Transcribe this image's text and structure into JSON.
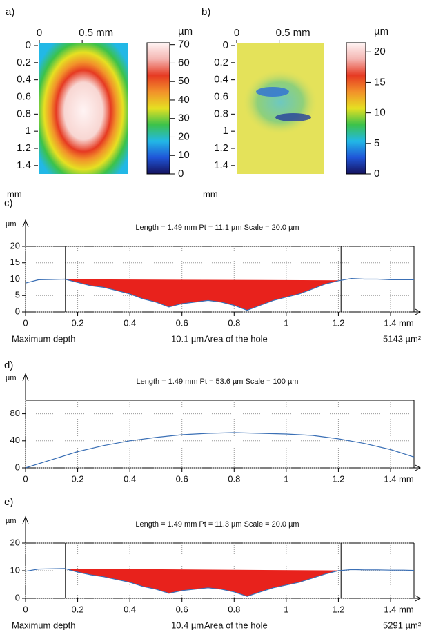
{
  "chart_data": [
    {
      "type": "heatmap",
      "label": "a)",
      "y_unit": "mm",
      "xlim": [
        0,
        1.03
      ],
      "xticks": [
        0,
        {
          "value": 0.5,
          "label": "0.5 mm"
        }
      ],
      "ylim": [
        0,
        1.49
      ],
      "yticks": [
        0,
        0.2,
        0.4,
        0.6,
        0.8,
        1,
        1.2,
        1.4
      ],
      "colorbar": {
        "unit": "µm",
        "lim": [
          0,
          71
        ],
        "ticks": [
          0,
          10,
          20,
          30,
          40,
          50,
          60,
          70
        ]
      },
      "colormap": [
        "#15125e",
        "#1f55d8",
        "#22b8e6",
        "#3cc24a",
        "#e6e022",
        "#f2922a",
        "#e63a22",
        "#f4b4b0",
        "#fff4f4"
      ]
    },
    {
      "type": "heatmap",
      "label": "b)",
      "y_unit": "mm",
      "xlim": [
        0,
        1.03
      ],
      "xticks": [
        0,
        {
          "value": 0.5,
          "label": "0.5 mm"
        }
      ],
      "ylim": [
        0,
        1.49
      ],
      "yticks": [
        0,
        0.2,
        0.4,
        0.6,
        0.8,
        1,
        1.2,
        1.4
      ],
      "colorbar": {
        "unit": "µm",
        "lim": [
          0,
          21.5
        ],
        "ticks": [
          0,
          5,
          10,
          15,
          20
        ]
      },
      "colormap": [
        "#15125e",
        "#1f55d8",
        "#22b8e6",
        "#3cc24a",
        "#e6e022",
        "#f2922a",
        "#e63a22",
        "#f4b4b0",
        "#fff4f4"
      ]
    },
    {
      "type": "line",
      "label": "c)",
      "y_unit": "µm",
      "annotation": "Length = 1.49 mm  Pt = 11.1 µm  Scale = 20.0 µm",
      "x": [
        0,
        0.05,
        0.1,
        0.15,
        0.2,
        0.25,
        0.3,
        0.35,
        0.4,
        0.45,
        0.5,
        0.55,
        0.6,
        0.65,
        0.7,
        0.75,
        0.8,
        0.85,
        0.9,
        0.95,
        1,
        1.05,
        1.1,
        1.15,
        1.2,
        1.25,
        1.3,
        1.35,
        1.4,
        1.45,
        1.49
      ],
      "values": [
        8.8,
        9.8,
        9.9,
        10,
        9,
        8,
        7.5,
        6.5,
        5.5,
        4,
        3,
        1.5,
        2.5,
        3,
        3.5,
        3,
        2,
        0.5,
        2,
        3.5,
        4.5,
        5.5,
        7,
        8.5,
        9.5,
        10.2,
        10,
        10,
        9.8,
        9.8,
        9.8
      ],
      "color": "#3a6fb5",
      "fill_color": "#e8221c",
      "cursors": [
        0.153,
        1.21
      ],
      "xlim": [
        0,
        1.49
      ],
      "xticks": [
        0,
        0.2,
        0.4,
        0.6,
        0.8,
        1,
        1.2,
        {
          "value": 1.4,
          "label": "1.4 mm"
        }
      ],
      "ylim": [
        0,
        20
      ],
      "yticks": [
        0,
        5,
        10,
        15,
        20
      ],
      "grid": true,
      "stats": [
        "Maximum depth",
        "10.1 µm",
        "Area of the hole",
        "5143 µm²"
      ]
    },
    {
      "type": "line",
      "label": "d)",
      "y_unit": "µm",
      "annotation": "Length = 1.49 mm  Pt = 53.6 µm  Scale = 100 µm",
      "x": [
        0,
        0.1,
        0.2,
        0.3,
        0.4,
        0.5,
        0.6,
        0.7,
        0.8,
        0.9,
        1,
        1.1,
        1.2,
        1.3,
        1.4,
        1.49
      ],
      "values": [
        0,
        12,
        24,
        33,
        40,
        45,
        49,
        51,
        52,
        51,
        50,
        48,
        43,
        36,
        27,
        16
      ],
      "color": "#3a6fb5",
      "xlim": [
        0,
        1.49
      ],
      "xticks": [
        0,
        0.2,
        0.4,
        0.6,
        0.8,
        1,
        1.2,
        {
          "value": 1.4,
          "label": "1.4 mm"
        }
      ],
      "ylim": [
        0,
        100
      ],
      "yticks": [
        0,
        40,
        80
      ],
      "grid": true
    },
    {
      "type": "line",
      "label": "e)",
      "y_unit": "µm",
      "annotation": "Length = 1.49 mm  Pt = 11.3 µm  Scale = 20.0 µm",
      "x": [
        0,
        0.05,
        0.1,
        0.15,
        0.2,
        0.25,
        0.3,
        0.35,
        0.4,
        0.45,
        0.5,
        0.55,
        0.6,
        0.65,
        0.7,
        0.75,
        0.8,
        0.85,
        0.9,
        0.95,
        1,
        1.05,
        1.1,
        1.15,
        1.2,
        1.25,
        1.3,
        1.35,
        1.4,
        1.45,
        1.49
      ],
      "values": [
        9.8,
        10.6,
        10.7,
        10.8,
        9.5,
        8.5,
        7.8,
        6.8,
        5.8,
        4.3,
        3.3,
        1.8,
        2.8,
        3.3,
        3.8,
        3.3,
        2.3,
        0.7,
        2.3,
        3.8,
        4.8,
        5.8,
        7.3,
        8.8,
        10,
        10.4,
        10.3,
        10.3,
        10.2,
        10.2,
        10.1
      ],
      "color": "#3a6fb5",
      "fill_color": "#e8221c",
      "cursors": [
        0.153,
        1.21
      ],
      "xlim": [
        0,
        1.49
      ],
      "xticks": [
        0,
        0.2,
        0.4,
        0.6,
        0.8,
        1,
        1.2,
        {
          "value": 1.4,
          "label": "1.4 mm"
        }
      ],
      "ylim": [
        0,
        20
      ],
      "yticks": [
        0,
        10,
        20
      ],
      "grid": true,
      "stats": [
        "Maximum depth",
        "10.4 µm",
        "Area of the hole",
        "5291 µm²"
      ]
    }
  ]
}
